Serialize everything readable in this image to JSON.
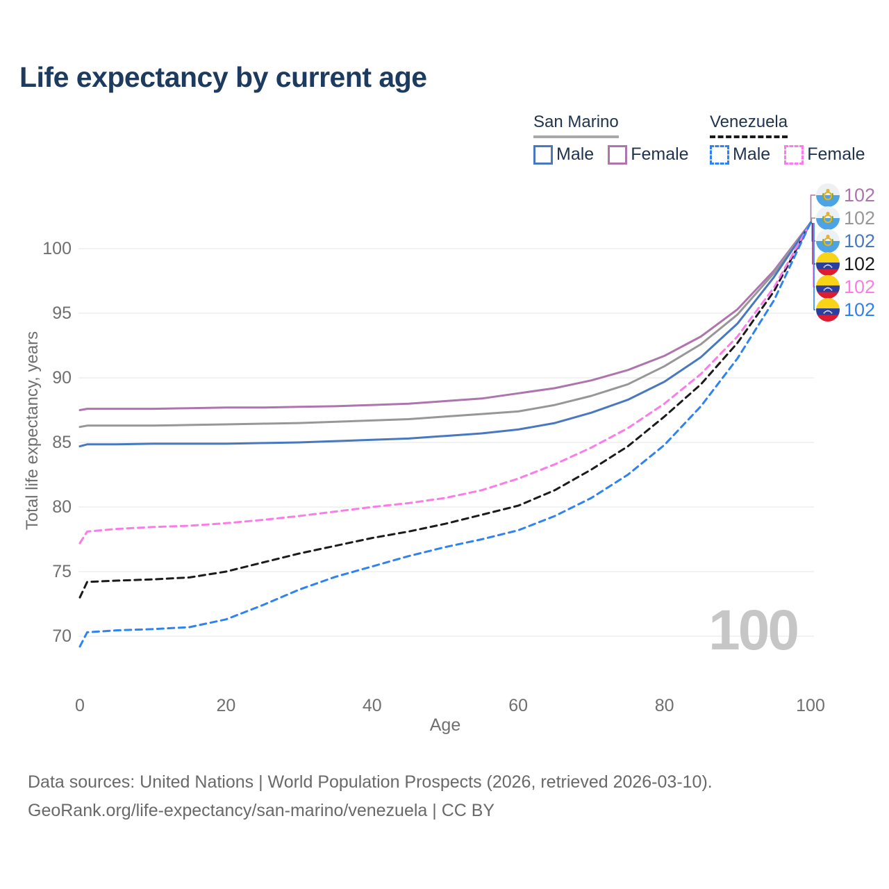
{
  "title": "Life expectancy by current age",
  "legend": {
    "groups": [
      {
        "label": "San Marino",
        "underline_style": "solid",
        "underline_color": "#a8a8a8",
        "items": [
          {
            "label": "Male",
            "series": "sm_male"
          },
          {
            "label": "Female",
            "series": "sm_female"
          }
        ]
      },
      {
        "label": "Venezuela",
        "underline_style": "dashed",
        "underline_color": "#1a1a1a",
        "items": [
          {
            "label": "Male",
            "series": "ve_male"
          },
          {
            "label": "Female",
            "series": "ve_female"
          }
        ]
      }
    ]
  },
  "chart_data": {
    "type": "line",
    "title": "Life expectancy by current age",
    "xlabel": "Age",
    "ylabel": "Total life expectancy, years",
    "xlim": [
      0,
      100
    ],
    "ylim": [
      67,
      103
    ],
    "x_ticks": [
      0,
      20,
      40,
      60,
      80,
      100
    ],
    "y_ticks": [
      70,
      75,
      80,
      85,
      90,
      95,
      100
    ],
    "grid": "horizontal",
    "legend_position": "top-right",
    "age_indicator": "100",
    "x": [
      0,
      1,
      5,
      10,
      15,
      20,
      25,
      30,
      35,
      40,
      45,
      50,
      55,
      60,
      65,
      70,
      75,
      80,
      85,
      90,
      95,
      100
    ],
    "series": [
      {
        "id": "sm_female",
        "name": "San Marino Female",
        "country": "San Marino",
        "sex": "Female",
        "color": "#ad74ae",
        "dash": "solid",
        "flag": "san-marino",
        "end_label": "102",
        "values": [
          87.5,
          87.6,
          87.6,
          87.6,
          87.65,
          87.7,
          87.7,
          87.75,
          87.8,
          87.9,
          88.0,
          88.2,
          88.4,
          88.8,
          89.2,
          89.8,
          90.6,
          91.7,
          93.2,
          95.3,
          98.3,
          102
        ]
      },
      {
        "id": "sm_total",
        "name": "San Marino Total",
        "country": "San Marino",
        "sex": "Total",
        "color": "#979797",
        "dash": "solid",
        "flag": "san-marino",
        "end_label": "102",
        "values": [
          86.2,
          86.3,
          86.3,
          86.3,
          86.35,
          86.4,
          86.45,
          86.5,
          86.6,
          86.7,
          86.8,
          87.0,
          87.2,
          87.4,
          87.9,
          88.6,
          89.5,
          90.9,
          92.6,
          94.9,
          98.1,
          102
        ]
      },
      {
        "id": "sm_male",
        "name": "San Marino Male",
        "country": "San Marino",
        "sex": "Male",
        "color": "#4878c0",
        "dash": "solid",
        "flag": "san-marino",
        "end_label": "102",
        "values": [
          84.7,
          84.85,
          84.85,
          84.9,
          84.9,
          84.9,
          84.95,
          85.0,
          85.1,
          85.2,
          85.3,
          85.5,
          85.7,
          86.0,
          86.5,
          87.3,
          88.3,
          89.7,
          91.6,
          94.2,
          97.8,
          102
        ]
      },
      {
        "id": "ve_total",
        "name": "Venezuela Total",
        "country": "Venezuela",
        "sex": "Total",
        "color": "#1b1b1b",
        "dash": "dashed",
        "flag": "venezuela",
        "end_label": "102",
        "values": [
          73.0,
          74.2,
          74.3,
          74.4,
          74.55,
          75.0,
          75.7,
          76.4,
          77.0,
          77.6,
          78.1,
          78.7,
          79.4,
          80.1,
          81.3,
          82.9,
          84.7,
          87.0,
          89.5,
          92.7,
          96.7,
          102
        ]
      },
      {
        "id": "ve_female",
        "name": "Venezuela Female",
        "country": "Venezuela",
        "sex": "Female",
        "color": "#fb7ce8",
        "dash": "dashed",
        "flag": "venezuela",
        "end_label": "102",
        "values": [
          77.2,
          78.1,
          78.3,
          78.45,
          78.55,
          78.75,
          79.0,
          79.3,
          79.65,
          80.0,
          80.3,
          80.7,
          81.3,
          82.2,
          83.3,
          84.6,
          86.1,
          88.0,
          90.3,
          93.2,
          97.0,
          102
        ]
      },
      {
        "id": "ve_male",
        "name": "Venezuela Male",
        "country": "Venezuela",
        "sex": "Male",
        "color": "#2e82f1",
        "dash": "dashed",
        "flag": "venezuela",
        "end_label": "102",
        "values": [
          69.2,
          70.3,
          70.45,
          70.55,
          70.7,
          71.3,
          72.4,
          73.6,
          74.6,
          75.4,
          76.2,
          76.9,
          77.5,
          78.2,
          79.3,
          80.7,
          82.5,
          84.8,
          87.8,
          91.5,
          96.0,
          102
        ]
      }
    ]
  },
  "footer": {
    "line1": "Data sources: United Nations | World Population Prospects (2026, retrieved 2026-03-10).",
    "line2": "GeoRank.org/life-expectancy/san-marino/venezuela | CC BY"
  }
}
